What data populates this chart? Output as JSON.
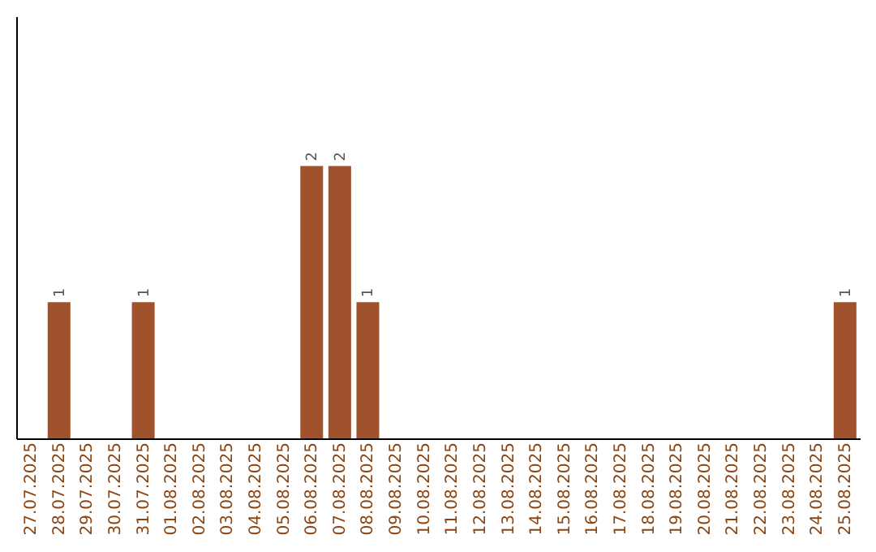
{
  "chart_data": {
    "type": "bar",
    "categories": [
      "27.07.2025",
      "28.07.2025",
      "29.07.2025",
      "30.07.2025",
      "31.07.2025",
      "01.08.2025",
      "02.08.2025",
      "03.08.2025",
      "04.08.2025",
      "05.08.2025",
      "06.08.2025",
      "07.08.2025",
      "08.08.2025",
      "09.08.2025",
      "10.08.2025",
      "11.08.2025",
      "12.08.2025",
      "13.08.2025",
      "14.08.2025",
      "15.08.2025",
      "16.08.2025",
      "17.08.2025",
      "18.08.2025",
      "19.08.2025",
      "20.08.2025",
      "21.08.2025",
      "22.08.2025",
      "23.08.2025",
      "24.08.2025",
      "25.08.2025"
    ],
    "values": [
      0,
      1,
      0,
      0,
      1,
      0,
      0,
      0,
      0,
      0,
      2,
      2,
      1,
      0,
      0,
      0,
      0,
      0,
      0,
      0,
      0,
      0,
      0,
      0,
      0,
      0,
      0,
      0,
      0,
      1
    ],
    "value_labels": [
      null,
      "1",
      null,
      null,
      "1",
      null,
      null,
      null,
      null,
      null,
      "2",
      "2",
      "1",
      null,
      null,
      null,
      null,
      null,
      null,
      null,
      null,
      null,
      null,
      null,
      null,
      null,
      null,
      null,
      null,
      "1"
    ],
    "color": "#a0522d",
    "ylim": [
      0,
      3.1
    ]
  }
}
